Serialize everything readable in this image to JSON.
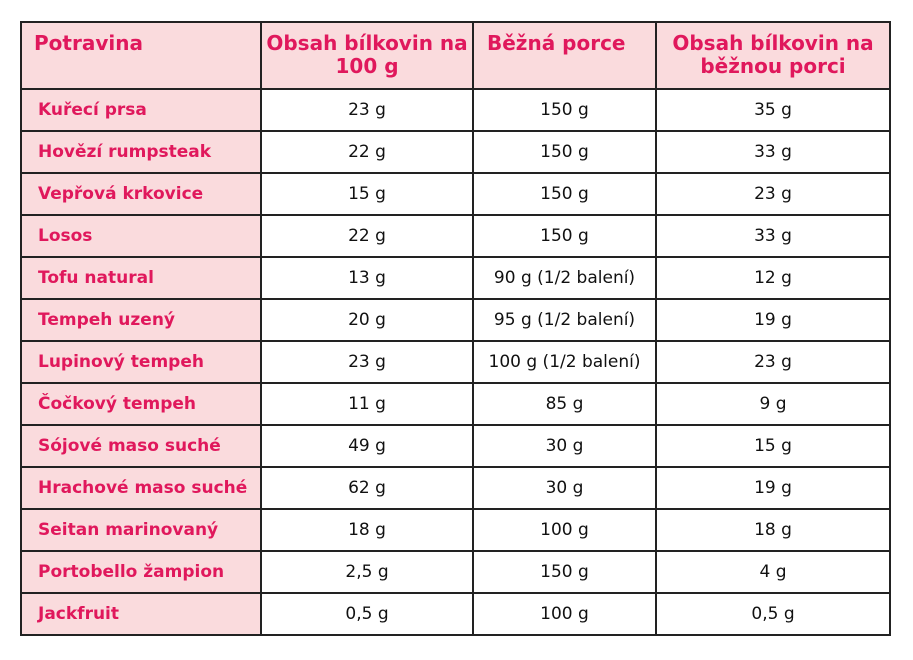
{
  "colors": {
    "accent": "#e0185c",
    "header_bg": "#fadbdd",
    "border": "#222222",
    "text": "#111111"
  },
  "chart_data": {
    "type": "table",
    "columns": [
      "Potravina",
      "Obsah bílkovin na 100 g",
      "Běžná porce",
      "Obsah bílkovin na běžnou porci"
    ],
    "rows": [
      [
        "Kuřecí prsa",
        "23 g",
        "150 g",
        "35 g"
      ],
      [
        "Hovězí rumpsteak",
        "22 g",
        "150 g",
        "33 g"
      ],
      [
        "Vepřová krkovice",
        "15 g",
        "150 g",
        "23 g"
      ],
      [
        "Losos",
        "22 g",
        "150 g",
        "33 g"
      ],
      [
        "Tofu natural",
        "13 g",
        "90 g (1/2 balení)",
        "12 g"
      ],
      [
        "Tempeh uzený",
        "20 g",
        "95 g (1/2 balení)",
        "19 g"
      ],
      [
        "Lupinový tempeh",
        "23 g",
        "100 g (1/2 balení)",
        "23 g"
      ],
      [
        "Čočkový tempeh",
        "11 g",
        "85 g",
        "9 g"
      ],
      [
        "Sójové maso suché",
        "49 g",
        "30 g",
        "15 g"
      ],
      [
        "Hrachové maso suché",
        "62 g",
        "30 g",
        "19 g"
      ],
      [
        "Seitan marinovaný",
        "18 g",
        "100 g",
        "18 g"
      ],
      [
        "Portobello žampion",
        "2,5 g",
        "150 g",
        "4 g"
      ],
      [
        "Jackfruit",
        "0,5 g",
        "100 g",
        "0,5 g"
      ]
    ]
  }
}
